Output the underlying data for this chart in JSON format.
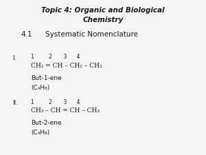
{
  "title_line1": "Topic 4: Organic and Biological",
  "title_line2": "Chemistry",
  "subtitle_num": "4.1",
  "subtitle_text": "Systematic Nomenclature",
  "background_color": "#f5f5f5",
  "text_color": "#1a1a1a",
  "section_I_label": "I.",
  "section_I_numbers": "1         2       3      4",
  "section_I_formula": "CH₂ = CH – CH₂ – CH₃",
  "section_I_name": "But-1-ene",
  "section_I_mol": "(C₄H₈)",
  "section_II_label": "II.",
  "section_II_numbers": "1         2       3      4",
  "section_II_formula": "CH₃ – CH = CH – CH₃",
  "section_II_name": "But-2-ene",
  "section_II_mol": "(C₄H₈)",
  "title_fontsize": 7.5,
  "subtitle_fontsize": 7.5,
  "body_fontsize": 6.5,
  "num_fontsize": 5.5
}
